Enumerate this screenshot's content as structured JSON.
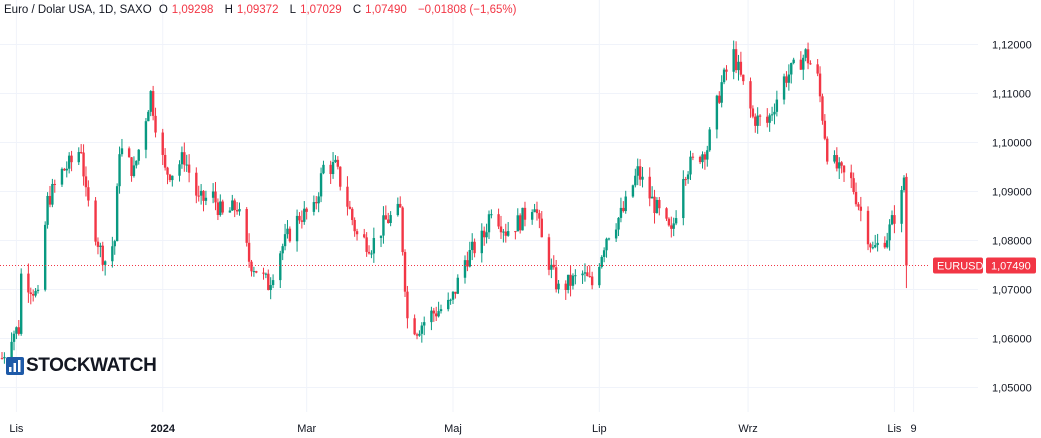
{
  "header": {
    "symbol": "Euro / Dolar USA, 1D, SAXO",
    "o_label": "O",
    "o_value": "1,09298",
    "h_label": "H",
    "h_value": "1,09372",
    "l_label": "L",
    "l_value": "1,07029",
    "c_label": "C",
    "c_value": "1,07490",
    "change": "−0,01808 (−1,65%)"
  },
  "price_tag": {
    "symbol": "EURUSD",
    "price": "1,07490"
  },
  "logo": {
    "text": "STOCKWATCH"
  },
  "colors": {
    "up": "#089981",
    "down": "#f23645",
    "grid": "#f0f3fa",
    "text": "#131722"
  },
  "chart_data": {
    "type": "candlestick",
    "title": "Euro / Dolar USA, 1D, SAXO",
    "ylim": [
      1.045,
      1.125
    ],
    "y_ticks": [
      1.05,
      1.06,
      1.07,
      1.08,
      1.09,
      1.1,
      1.11,
      1.12
    ],
    "y_tick_labels": [
      "1,05000",
      "1,06000",
      "1,07000",
      "1,08000",
      "1,09000",
      "1,10000",
      "1,11000",
      "1,12000"
    ],
    "x_tick_labels": [
      "Lis",
      "2024",
      "Mar",
      "Maj",
      "Lip",
      "Wrz",
      "Lis",
      "9"
    ],
    "x_tick_dates": [
      "2023-11-01",
      "2024-01-01",
      "2024-03-01",
      "2024-05-01",
      "2024-07-01",
      "2024-09-01",
      "2024-11-01",
      "2024-11-09"
    ],
    "last_close": 1.0749,
    "series": [
      {
        "name": "EURUSD",
        "close_path": [
          [
            "2023-10-26",
            1.056
          ],
          [
            "2023-10-30",
            1.061
          ],
          [
            "2023-11-02",
            1.062
          ],
          [
            "2023-11-03",
            1.073
          ],
          [
            "2023-11-08",
            1.07
          ],
          [
            "2023-11-10",
            1.068
          ],
          [
            "2023-11-14",
            1.088
          ],
          [
            "2023-11-20",
            1.094
          ],
          [
            "2023-11-24",
            1.096
          ],
          [
            "2023-11-28",
            1.099
          ],
          [
            "2023-11-30",
            1.089
          ],
          [
            "2023-12-06",
            1.078
          ],
          [
            "2023-12-08",
            1.076
          ],
          [
            "2023-12-12",
            1.08
          ],
          [
            "2023-12-14",
            1.099
          ],
          [
            "2023-12-20",
            1.094
          ],
          [
            "2023-12-27",
            1.11
          ],
          [
            "2023-12-29",
            1.104
          ],
          [
            "2024-01-02",
            1.094
          ],
          [
            "2024-01-05",
            1.094
          ],
          [
            "2024-01-10",
            1.097
          ],
          [
            "2024-01-16",
            1.088
          ],
          [
            "2024-01-22",
            1.089
          ],
          [
            "2024-01-26",
            1.085
          ],
          [
            "2024-02-01",
            1.087
          ],
          [
            "2024-02-06",
            1.076
          ],
          [
            "2024-02-14",
            1.071
          ],
          [
            "2024-02-19",
            1.078
          ],
          [
            "2024-02-27",
            1.085
          ],
          [
            "2024-03-04",
            1.086
          ],
          [
            "2024-03-08",
            1.095
          ],
          [
            "2024-03-13",
            1.095
          ],
          [
            "2024-03-19",
            1.086
          ],
          [
            "2024-03-22",
            1.081
          ],
          [
            "2024-03-28",
            1.079
          ],
          [
            "2024-04-03",
            1.084
          ],
          [
            "2024-04-09",
            1.086
          ],
          [
            "2024-04-12",
            1.064
          ],
          [
            "2024-04-16",
            1.062
          ],
          [
            "2024-04-22",
            1.065
          ],
          [
            "2024-04-30",
            1.067
          ],
          [
            "2024-05-06",
            1.076
          ],
          [
            "2024-05-14",
            1.081
          ],
          [
            "2024-05-17",
            1.087
          ],
          [
            "2024-05-23",
            1.082
          ],
          [
            "2024-05-29",
            1.084
          ],
          [
            "2024-06-04",
            1.088
          ],
          [
            "2024-06-07",
            1.08
          ],
          [
            "2024-06-11",
            1.074
          ],
          [
            "2024-06-14",
            1.07
          ],
          [
            "2024-06-24",
            1.073
          ],
          [
            "2024-06-28",
            1.071
          ],
          [
            "2024-07-04",
            1.081
          ],
          [
            "2024-07-11",
            1.086
          ],
          [
            "2024-07-17",
            1.094
          ],
          [
            "2024-07-22",
            1.089
          ],
          [
            "2024-07-31",
            1.081
          ],
          [
            "2024-08-05",
            1.094
          ],
          [
            "2024-08-15",
            1.099
          ],
          [
            "2024-08-21",
            1.112
          ],
          [
            "2024-08-26",
            1.118
          ],
          [
            "2024-09-03",
            1.105
          ],
          [
            "2024-09-09",
            1.104
          ],
          [
            "2024-09-16",
            1.113
          ],
          [
            "2024-09-20",
            1.115
          ],
          [
            "2024-09-25",
            1.118
          ],
          [
            "2024-09-30",
            1.113
          ],
          [
            "2024-10-04",
            1.098
          ],
          [
            "2024-10-09",
            1.094
          ],
          [
            "2024-10-14",
            1.092
          ],
          [
            "2024-10-18",
            1.086
          ],
          [
            "2024-10-23",
            1.078
          ],
          [
            "2024-10-29",
            1.081
          ],
          [
            "2024-11-04",
            1.089
          ],
          [
            "2024-11-05",
            1.093
          ],
          [
            "2024-11-06",
            1.0749
          ]
        ]
      }
    ],
    "x_axis": "date",
    "grid": true
  }
}
